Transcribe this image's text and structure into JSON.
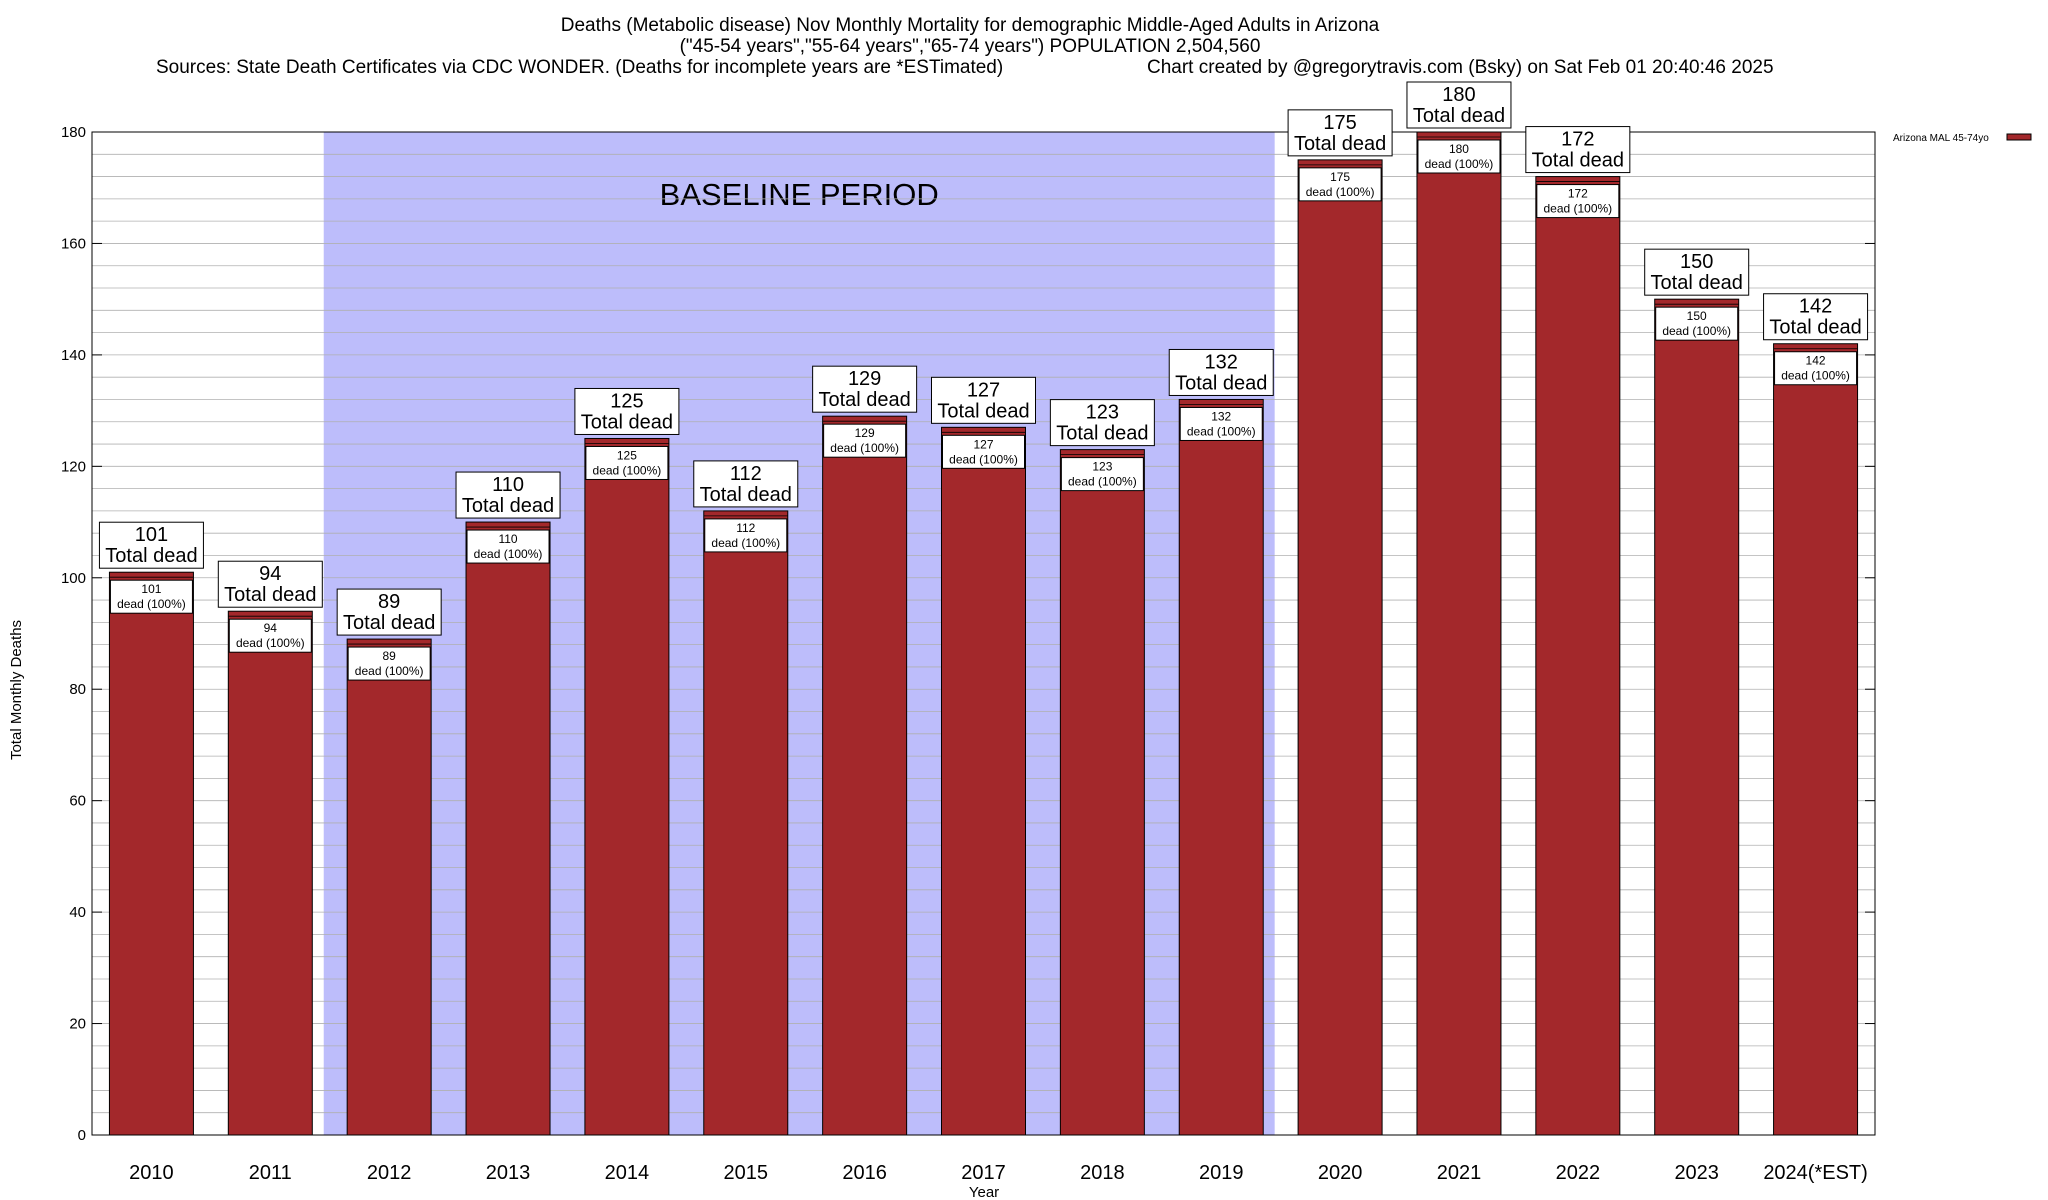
{
  "title": {
    "line1": "Deaths (Metabolic disease) Nov Monthly Mortality for demographic Middle-Aged Adults in Arizona",
    "line2": "(\"45-54 years\",\"55-64 years\",\"65-74 years\") POPULATION 2,504,560",
    "line3_left": "Sources: State Death Certificates via CDC WONDER. (Deaths for incomplete years are *ESTimated)",
    "line3_right": "Chart created by @gregorytravis.com (Bsky) on Sat Feb 01 20:40:46 2025"
  },
  "chart_data": {
    "type": "bar",
    "xlabel": "Year",
    "ylabel": "Total Monthly Deaths",
    "ylim": [
      0,
      180
    ],
    "y_major_ticks": [
      0,
      20,
      40,
      60,
      80,
      100,
      120,
      140,
      160,
      180
    ],
    "y_minor_step": 4,
    "grid": true,
    "legend": {
      "placement": "top-right",
      "label": "Arizona MAL 45-74yo"
    },
    "categories": [
      "2010",
      "2011",
      "2012",
      "2013",
      "2014",
      "2015",
      "2016",
      "2017",
      "2018",
      "2019",
      "2020",
      "2021",
      "2022",
      "2023",
      "2024(*EST)"
    ],
    "series": [
      {
        "name": "Arizona MAL 45-74yo",
        "values": [
          101,
          94,
          89,
          110,
          125,
          112,
          129,
          127,
          123,
          132,
          175,
          180,
          172,
          150,
          142
        ]
      }
    ],
    "top_label_suffix": "Total dead",
    "inner_label_suffix": "dead (100%)",
    "baseline_period": {
      "label": "BASELINE PERIOD",
      "from": "2012",
      "to": "2019"
    }
  },
  "colors": {
    "bar": "#a3282b",
    "baseline_band": "#bdbdfb",
    "grid": "#b0b0b0",
    "axis": "#000000"
  }
}
